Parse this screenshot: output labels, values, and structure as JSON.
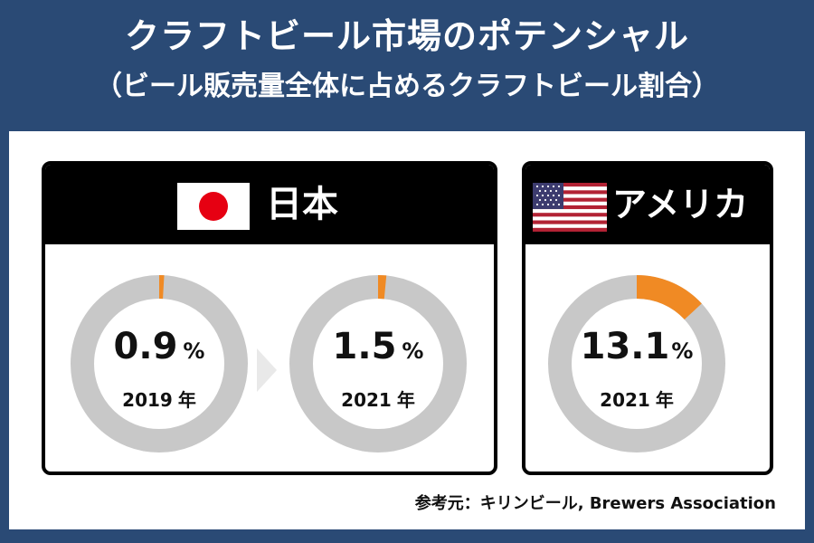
{
  "title": "クラフトビール市場のポテンシャル",
  "subtitle": "（ビール販売量全体に占めるクラフトビール割合）",
  "colors": {
    "background": "#2a4a75",
    "accent": "#f08a24",
    "ring": "#c8c8c8",
    "header": "#000000"
  },
  "cards": [
    {
      "country": "日本",
      "flag": "japan-flag-icon"
    },
    {
      "country": "アメリカ",
      "flag": "usa-flag-icon"
    }
  ],
  "percent_symbol": "%",
  "year_suffix": "年",
  "chart_data": [
    {
      "type": "pie",
      "country": "日本",
      "year": "2019",
      "value": 0.9,
      "label": "0.9"
    },
    {
      "type": "pie",
      "country": "日本",
      "year": "2021",
      "value": 1.5,
      "label": "1.5"
    },
    {
      "type": "pie",
      "country": "アメリカ",
      "year": "2021",
      "value": 13.1,
      "label": "13.1"
    }
  ],
  "source": "参考元：キリンビール, Brewers Association"
}
